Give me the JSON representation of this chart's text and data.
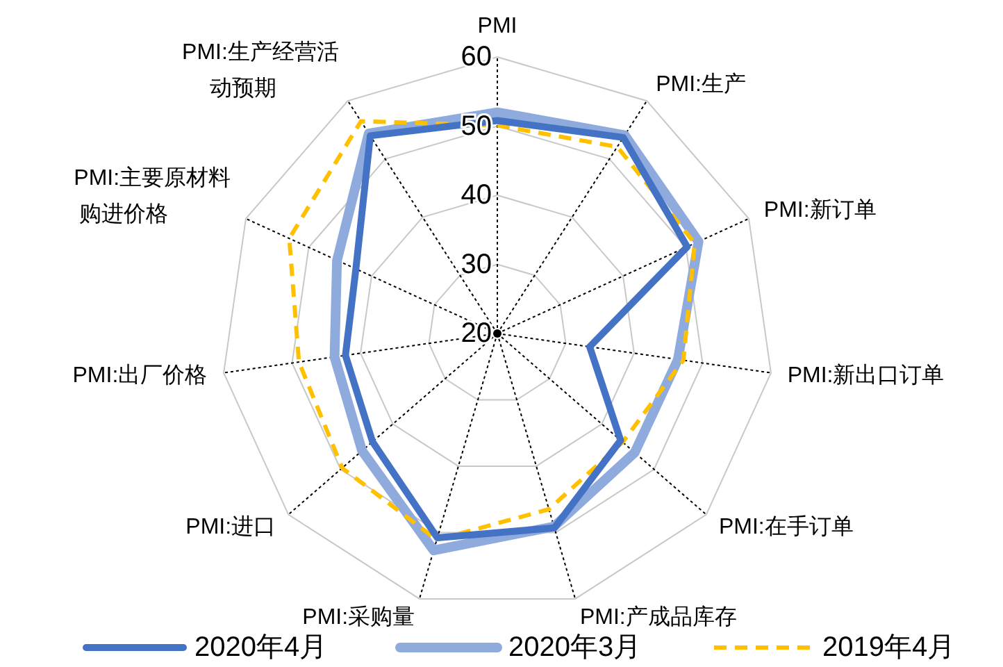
{
  "chart_data": {
    "type": "radar",
    "categories": [
      "PMI",
      "PMI:生产",
      "PMI:新订单",
      "PMI:新出口订单",
      "PMI:在手订单",
      "PMI:产成品库存",
      "PMI:采购量",
      "PMI:进口",
      "PMI:出厂价格",
      "PMI:主要原材料购进价格",
      "PMI:生产经营活动预期"
    ],
    "series": [
      {
        "name": "2020年4月",
        "color": "#4472c4",
        "line_style": "solid",
        "values": [
          50.8,
          53.7,
          50.2,
          33.5,
          43.6,
          49.3,
          50.8,
          43.9,
          42.2,
          42.5,
          54.0
        ]
      },
      {
        "name": "2020年3月",
        "color": "#8faadc",
        "line_style": "solid",
        "values": [
          52.0,
          54.1,
          52.0,
          46.4,
          46.3,
          49.1,
          52.7,
          45.9,
          43.8,
          45.5,
          54.4
        ]
      },
      {
        "name": "2019年4月",
        "color": "#ffc000",
        "line_style": "dashed",
        "values": [
          50.1,
          52.1,
          51.4,
          47.2,
          44.0,
          46.5,
          51.1,
          49.7,
          49.0,
          53.1,
          56.5
        ]
      }
    ],
    "ylim": [
      20,
      60
    ],
    "yticks": [
      20,
      30,
      40,
      50,
      60
    ],
    "grid": true,
    "legend": "bottom",
    "marker": "none"
  }
}
